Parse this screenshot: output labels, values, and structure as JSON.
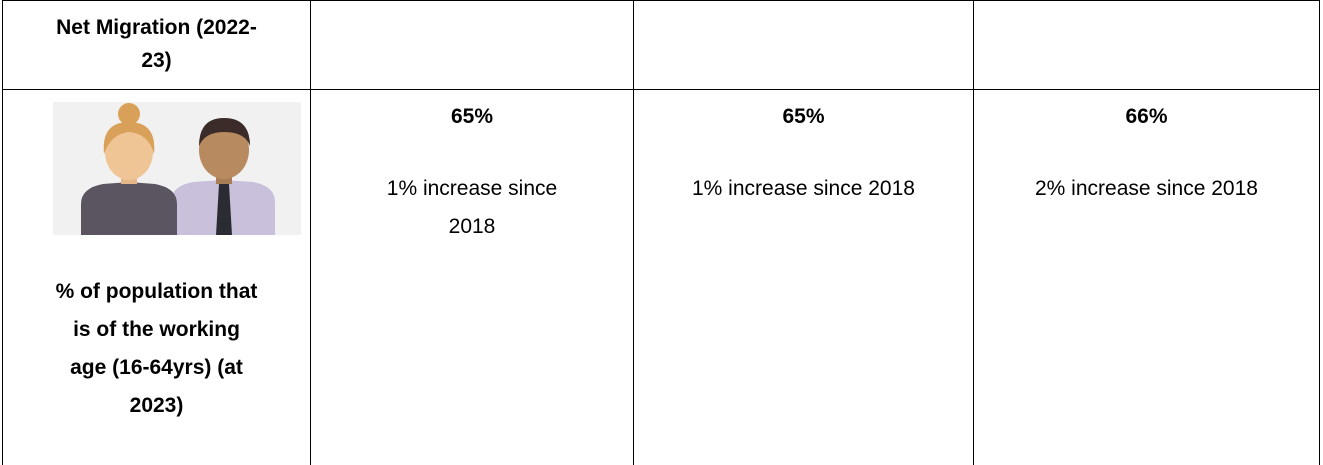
{
  "table": {
    "header": {
      "label": "Net Migration (2022-23)"
    },
    "indicator": {
      "label": "% of population that is of the working age (16-64yrs) (at 2023)"
    },
    "cells": [
      {
        "value": "65%",
        "change": "1% increase since 2018"
      },
      {
        "value": "65%",
        "change": "1% increase since 2018"
      },
      {
        "value": "66%",
        "change": "2% increase since 2018"
      }
    ]
  }
}
